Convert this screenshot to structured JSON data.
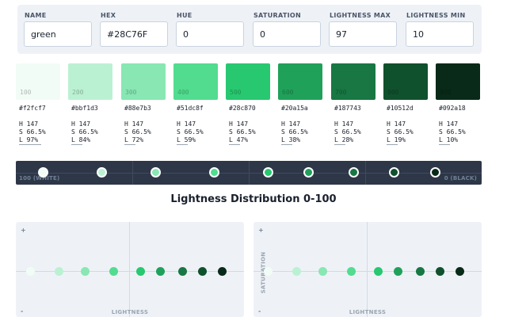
{
  "controls": {
    "name": {
      "label": "NAME",
      "value": "green"
    },
    "hex": {
      "label": "HEX",
      "value": "#28C76F"
    },
    "hue": {
      "label": "HUE",
      "value": "0"
    },
    "saturation": {
      "label": "SATURATION",
      "value": "0"
    },
    "lightness_max": {
      "label": "LIGHTNESS MAX",
      "value": "97"
    },
    "lightness_min": {
      "label": "LIGHTNESS MIN",
      "value": "10"
    }
  },
  "palette": [
    {
      "step": "100",
      "hex": "#f2fcf7",
      "h": "H 147",
      "s": "S 66.5%",
      "l": "L 97%",
      "lightness": 97
    },
    {
      "step": "200",
      "hex": "#bbf1d3",
      "h": "H 147",
      "s": "S 66.5%",
      "l": "L 84%",
      "lightness": 84
    },
    {
      "step": "300",
      "hex": "#88e7b3",
      "h": "H 147",
      "s": "S 66.5%",
      "l": "L 72%",
      "lightness": 72
    },
    {
      "step": "400",
      "hex": "#51dc8f",
      "h": "H 147",
      "s": "S 66.5%",
      "l": "L 59%",
      "lightness": 59
    },
    {
      "step": "500",
      "hex": "#28c870",
      "h": "H 147",
      "s": "S 66.5%",
      "l": "L 47%",
      "lightness": 47
    },
    {
      "step": "600",
      "hex": "#20a15a",
      "h": "H 147",
      "s": "S 66.5%",
      "l": "L 38%",
      "lightness": 38
    },
    {
      "step": "700",
      "hex": "#187743",
      "h": "H 147",
      "s": "S 66.5%",
      "l": "L 28%",
      "lightness": 28
    },
    {
      "step": "800",
      "hex": "#10512d",
      "h": "H 147",
      "s": "S 66.5%",
      "l": "L 19%",
      "lightness": 19
    },
    {
      "step": "900",
      "hex": "#092a18",
      "h": "H 147",
      "s": "S 66.5%",
      "l": "L 10%",
      "lightness": 10
    }
  ],
  "track": {
    "left_label": "100 (WHITE)",
    "right_label": "0 (BLACK)"
  },
  "section_title": "Lightness Distribution 0-100",
  "plots": {
    "plus": "+",
    "minus": "-",
    "left_xlabel": "LIGHTNESS",
    "right_xlabel": "LIGHTNESS",
    "right_ylabel": "SATURATION"
  }
}
